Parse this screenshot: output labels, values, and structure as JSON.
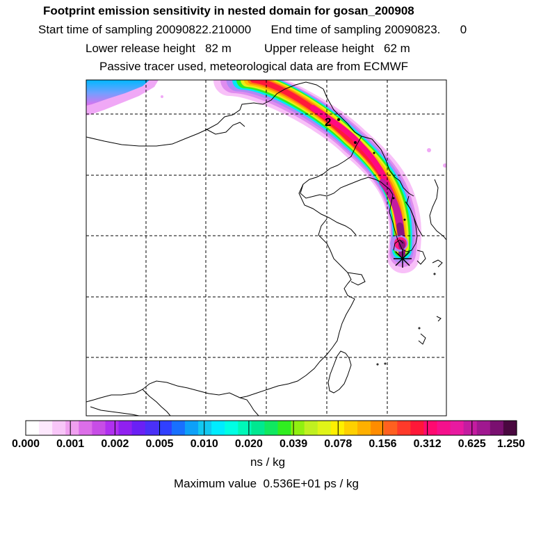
{
  "header": {
    "title": "Footprint emission sensitivity in nested domain for gosan_200908",
    "sampling_line": "Start time of sampling 20090822.210000      End time of sampling 20090823.      0",
    "release_line": "Lower release height   82 m          Upper release height   62 m",
    "tracer_line": "Passive tracer used, meteorological data are from ECMWF"
  },
  "map": {
    "trajectory_label": "2",
    "receptor_marker": "receptor-star"
  },
  "colorbar": {
    "colors": [
      "#ffffff",
      "#fde8fd",
      "#f8c6f8",
      "#f0a0f0",
      "#dc6ee8",
      "#c74de6",
      "#b030f0",
      "#9020f0",
      "#6a20f5",
      "#4a30f8",
      "#3040ff",
      "#1870ff",
      "#0da0f8",
      "#12c8f0",
      "#00ecff",
      "#00ffe4",
      "#00f8b8",
      "#00e890",
      "#10e860",
      "#30ee20",
      "#90f010",
      "#c0f020",
      "#e0f418",
      "#fff000",
      "#ffd000",
      "#ffb000",
      "#ff8c00",
      "#ff6020",
      "#ff3a2a",
      "#ff1838",
      "#ff0a70",
      "#f5108c",
      "#e81aa0",
      "#c41ca0",
      "#a01890",
      "#7a1070",
      "#4a0840"
    ],
    "ticks": [
      "0.000",
      "0.001",
      "0.002",
      "0.005",
      "0.010",
      "0.020",
      "0.039",
      "0.078",
      "0.156",
      "0.312",
      "0.625",
      "1.250"
    ],
    "unit": "ns / kg",
    "max_label": "Maximum value  0.536E+01 ps / kg"
  }
}
